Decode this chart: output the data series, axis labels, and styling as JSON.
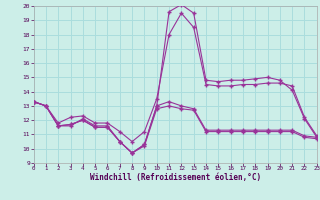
{
  "xlabel": "Windchill (Refroidissement éolien,°C)",
  "background_color": "#cceee8",
  "grid_color": "#aadddd",
  "line_color": "#993399",
  "xlim": [
    0,
    23
  ],
  "ylim": [
    9,
    20
  ],
  "xticks": [
    0,
    1,
    2,
    3,
    4,
    5,
    6,
    7,
    8,
    9,
    10,
    11,
    12,
    13,
    14,
    15,
    16,
    17,
    18,
    19,
    20,
    21,
    22,
    23
  ],
  "yticks": [
    9,
    10,
    11,
    12,
    13,
    14,
    15,
    16,
    17,
    18,
    19,
    20
  ],
  "series1_x": [
    0,
    1,
    2,
    3,
    4,
    5,
    6,
    7,
    8,
    9,
    10,
    11,
    12,
    13,
    14,
    15,
    16,
    17,
    18,
    19,
    20,
    21,
    22,
    23
  ],
  "series1_y": [
    13.3,
    13.0,
    11.6,
    11.7,
    12.0,
    11.5,
    11.5,
    10.5,
    9.7,
    10.3,
    13.0,
    13.3,
    13.0,
    12.8,
    11.3,
    11.3,
    11.3,
    11.3,
    11.3,
    11.3,
    11.3,
    11.3,
    10.9,
    10.8
  ],
  "series2_x": [
    0,
    1,
    2,
    3,
    4,
    5,
    6,
    7,
    8,
    9,
    10,
    11,
    12,
    13,
    14,
    15,
    16,
    17,
    18,
    19,
    20,
    21,
    22,
    23
  ],
  "series2_y": [
    13.3,
    13.0,
    11.6,
    11.7,
    12.0,
    11.5,
    11.5,
    10.5,
    9.7,
    10.3,
    13.0,
    19.6,
    20.1,
    19.5,
    14.8,
    14.7,
    14.8,
    14.8,
    14.9,
    15.0,
    14.8,
    14.1,
    12.1,
    10.8
  ],
  "series3_x": [
    0,
    1,
    2,
    3,
    4,
    5,
    6,
    7,
    8,
    9,
    10,
    11,
    12,
    13,
    14,
    15,
    16,
    17,
    18,
    19,
    20,
    21,
    22,
    23
  ],
  "series3_y": [
    13.3,
    13.0,
    11.8,
    12.2,
    12.3,
    11.8,
    11.8,
    11.2,
    10.5,
    11.2,
    13.5,
    18.0,
    19.5,
    18.5,
    14.5,
    14.4,
    14.4,
    14.5,
    14.5,
    14.6,
    14.6,
    14.4,
    12.2,
    10.9
  ],
  "series4_x": [
    0,
    1,
    2,
    3,
    4,
    5,
    6,
    7,
    8,
    9,
    10,
    11,
    12,
    13,
    14,
    15,
    16,
    17,
    18,
    19,
    20,
    21,
    22,
    23
  ],
  "series4_y": [
    13.3,
    13.0,
    11.6,
    11.6,
    12.1,
    11.6,
    11.6,
    10.5,
    9.7,
    10.2,
    12.8,
    13.0,
    12.8,
    12.7,
    11.2,
    11.2,
    11.2,
    11.2,
    11.2,
    11.2,
    11.2,
    11.2,
    10.8,
    10.7
  ],
  "marker": "+",
  "figsize": [
    3.2,
    2.0
  ],
  "dpi": 100
}
